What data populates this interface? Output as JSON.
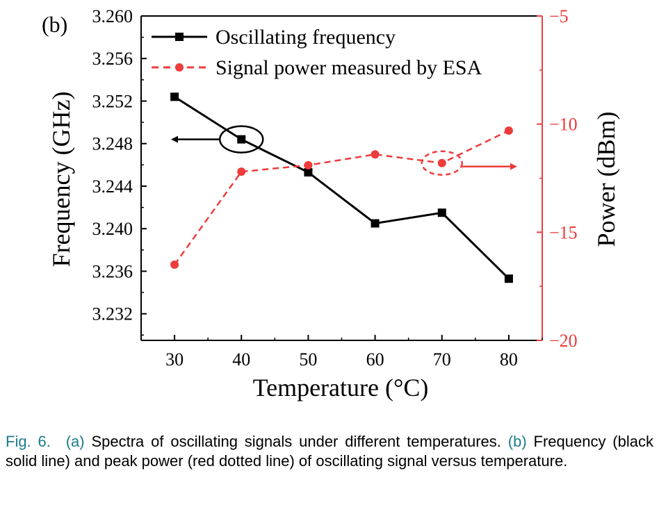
{
  "chart_data": {
    "type": "line",
    "panel_label": "(b)",
    "xlabel": "Temperature (°C)",
    "ylabel_left": "Frequency (GHz)",
    "ylabel_right": "Power (dBm)",
    "x_ticks": [
      "30",
      "40",
      "50",
      "60",
      "70",
      "80"
    ],
    "y_left_ticks": [
      "3.232",
      "3.236",
      "3.240",
      "3.244",
      "3.248",
      "3.252",
      "3.256",
      "3.260"
    ],
    "y_right_ticks": [
      "−20",
      "−15",
      "−10",
      "−5"
    ],
    "xlim": [
      25,
      85
    ],
    "y_left_lim": [
      3.2295,
      3.26
    ],
    "y_right_lim": [
      -20,
      -5
    ],
    "x": [
      30,
      40,
      50,
      60,
      70,
      80
    ],
    "series": [
      {
        "name": "Oscillating frequency",
        "axis": "left",
        "style": "solid",
        "marker": "square",
        "color": "#000000",
        "values": [
          3.2524,
          3.2484,
          3.2453,
          3.2405,
          3.2415,
          3.2353
        ]
      },
      {
        "name": "Signal power measured by ESA",
        "axis": "right",
        "style": "dashed",
        "marker": "circle",
        "color": "#ee3b3b",
        "values": [
          -16.5,
          -12.2,
          -11.9,
          -11.4,
          -11.8,
          -10.3
        ]
      }
    ],
    "legend_position": "top-left",
    "grid": false
  },
  "caption": {
    "fig_label": "Fig. 6.",
    "part_a_label": "(a)",
    "part_a_text": " Spectra of oscillating signals under different temperatures.",
    "part_b_label": "(b)",
    "part_b_text": " Frequency (black solid line) and peak power (red dotted line) of oscillating signal versus temperature."
  }
}
